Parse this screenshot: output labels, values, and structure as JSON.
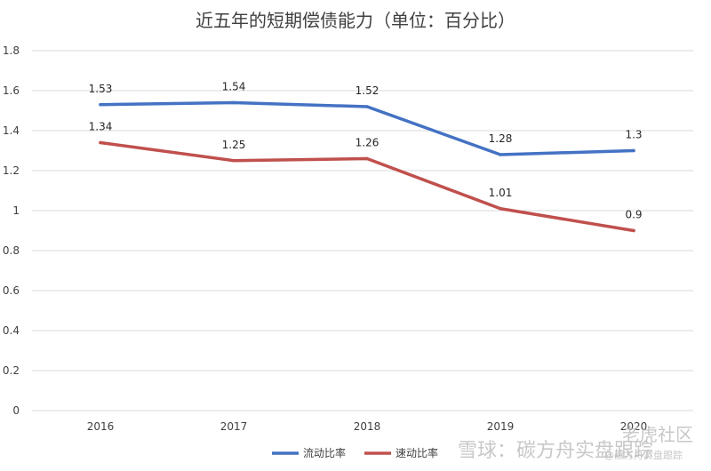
{
  "chart_data": {
    "type": "line",
    "title": "近五年的短期偿债能力（单位：百分比）",
    "categories": [
      "2016",
      "2017",
      "2018",
      "2019",
      "2020"
    ],
    "series": [
      {
        "name": "流动比率",
        "color": "#4472c4",
        "values": [
          1.53,
          1.54,
          1.52,
          1.28,
          1.3
        ],
        "labels": [
          "1.53",
          "1.54",
          "1.52",
          "1.28",
          "1.3"
        ]
      },
      {
        "name": "速动比率",
        "color": "#c0504d",
        "values": [
          1.34,
          1.25,
          1.26,
          1.01,
          0.9
        ],
        "labels": [
          "1.34",
          "1.25",
          "1.26",
          "1.01",
          "0.9"
        ]
      }
    ],
    "ylim": [
      0,
      1.8
    ],
    "yticks": [
      "0",
      "0.2",
      "0.4",
      "0.6",
      "0.8",
      "1",
      "1.2",
      "1.4",
      "1.6",
      "1.8"
    ],
    "grid": true,
    "legend": "bottom"
  },
  "watermarks": {
    "top": "老虎社区",
    "main": "雪球：碳方舟实盘跟踪",
    "handle": "@碳方舟实盘跟踪"
  }
}
